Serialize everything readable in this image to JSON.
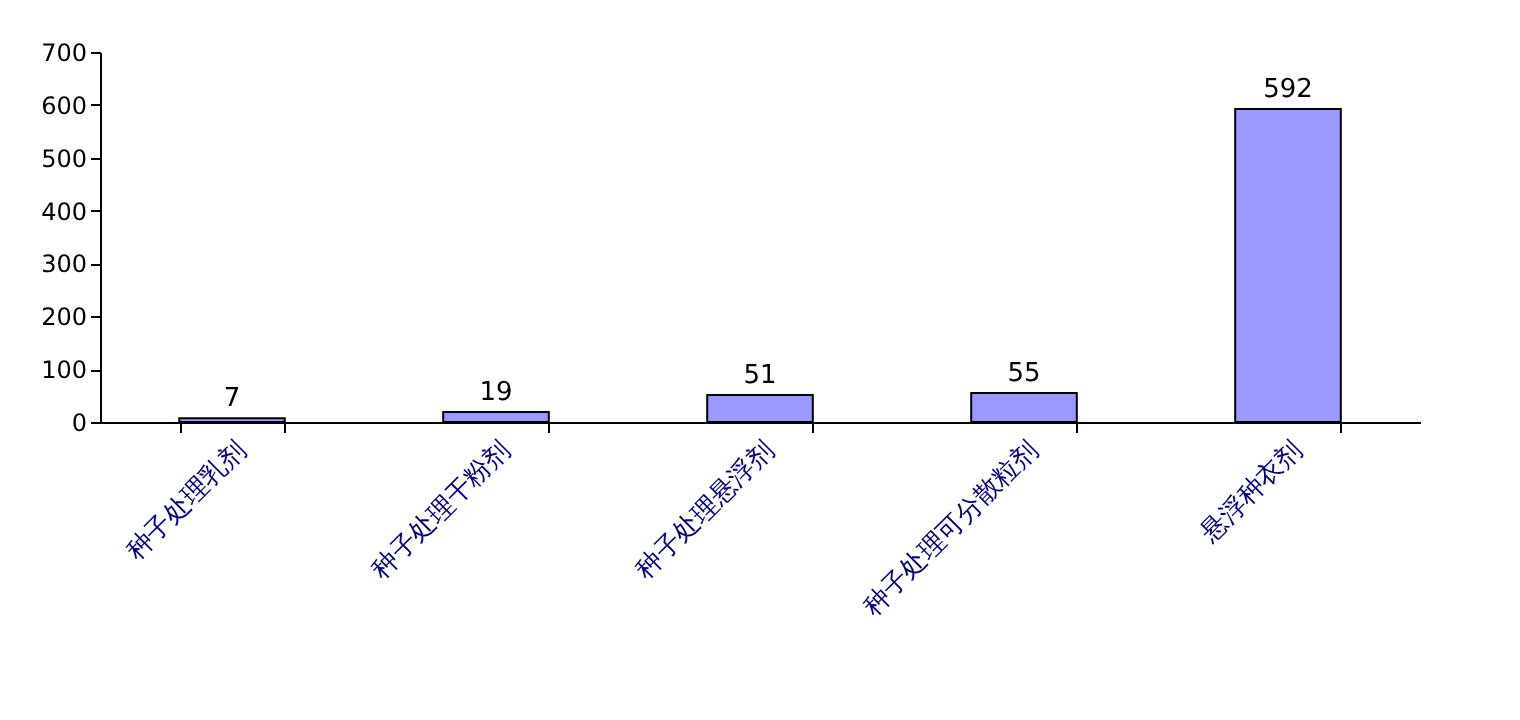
{
  "chart_data": {
    "type": "bar",
    "categories": [
      "种子处理乳剂",
      "种子处理干粉剂",
      "种子处理悬浮剂",
      "种子处理可分散粒剂",
      "悬浮种衣剂"
    ],
    "values": [
      7,
      19,
      51,
      55,
      592
    ],
    "color": "#9999ff",
    "ylim": [
      0,
      700
    ],
    "yticks": [
      0,
      100,
      200,
      300,
      400,
      500,
      600,
      700
    ],
    "data_labels": true,
    "grid": false
  }
}
